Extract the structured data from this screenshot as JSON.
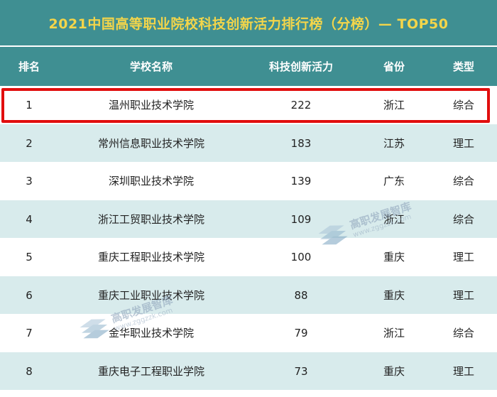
{
  "title": "2021中国高等职业院校科技创新活力排行榜（分榜）— TOP50",
  "columns": {
    "rank": "排名",
    "name": "学校名称",
    "score": "科技创新活力",
    "province": "省份",
    "type": "类型"
  },
  "rows": [
    {
      "rank": "1",
      "name": "温州职业技术学院",
      "score": "222",
      "province": "浙江",
      "type": "综合"
    },
    {
      "rank": "2",
      "name": "常州信息职业技术学院",
      "score": "183",
      "province": "江苏",
      "type": "理工"
    },
    {
      "rank": "3",
      "name": "深圳职业技术学院",
      "score": "139",
      "province": "广东",
      "type": "综合"
    },
    {
      "rank": "4",
      "name": "浙江工贸职业技术学院",
      "score": "109",
      "province": "浙江",
      "type": "综合"
    },
    {
      "rank": "5",
      "name": "重庆工程职业技术学院",
      "score": "100",
      "province": "重庆",
      "type": "理工"
    },
    {
      "rank": "6",
      "name": "重庆工业职业技术学院",
      "score": "88",
      "province": "重庆",
      "type": "理工"
    },
    {
      "rank": "7",
      "name": "金华职业技术学院",
      "score": "79",
      "province": "浙江",
      "type": "综合"
    },
    {
      "rank": "8",
      "name": "重庆电子工程职业学院",
      "score": "73",
      "province": "重庆",
      "type": "理工"
    }
  ],
  "watermarks": [
    {
      "text": "高职发展智库",
      "url": "www.zggzzk.com",
      "icon": "stacked-books-icon"
    },
    {
      "text": "高职发展智库",
      "url": "www.zggzzk.com",
      "icon": "stacked-books-icon"
    }
  ],
  "colors": {
    "header_bg": "#3f8f92",
    "title_text": "#f3d54a",
    "row_alt": "#d8ebec",
    "highlight_border": "#e10e0e"
  }
}
